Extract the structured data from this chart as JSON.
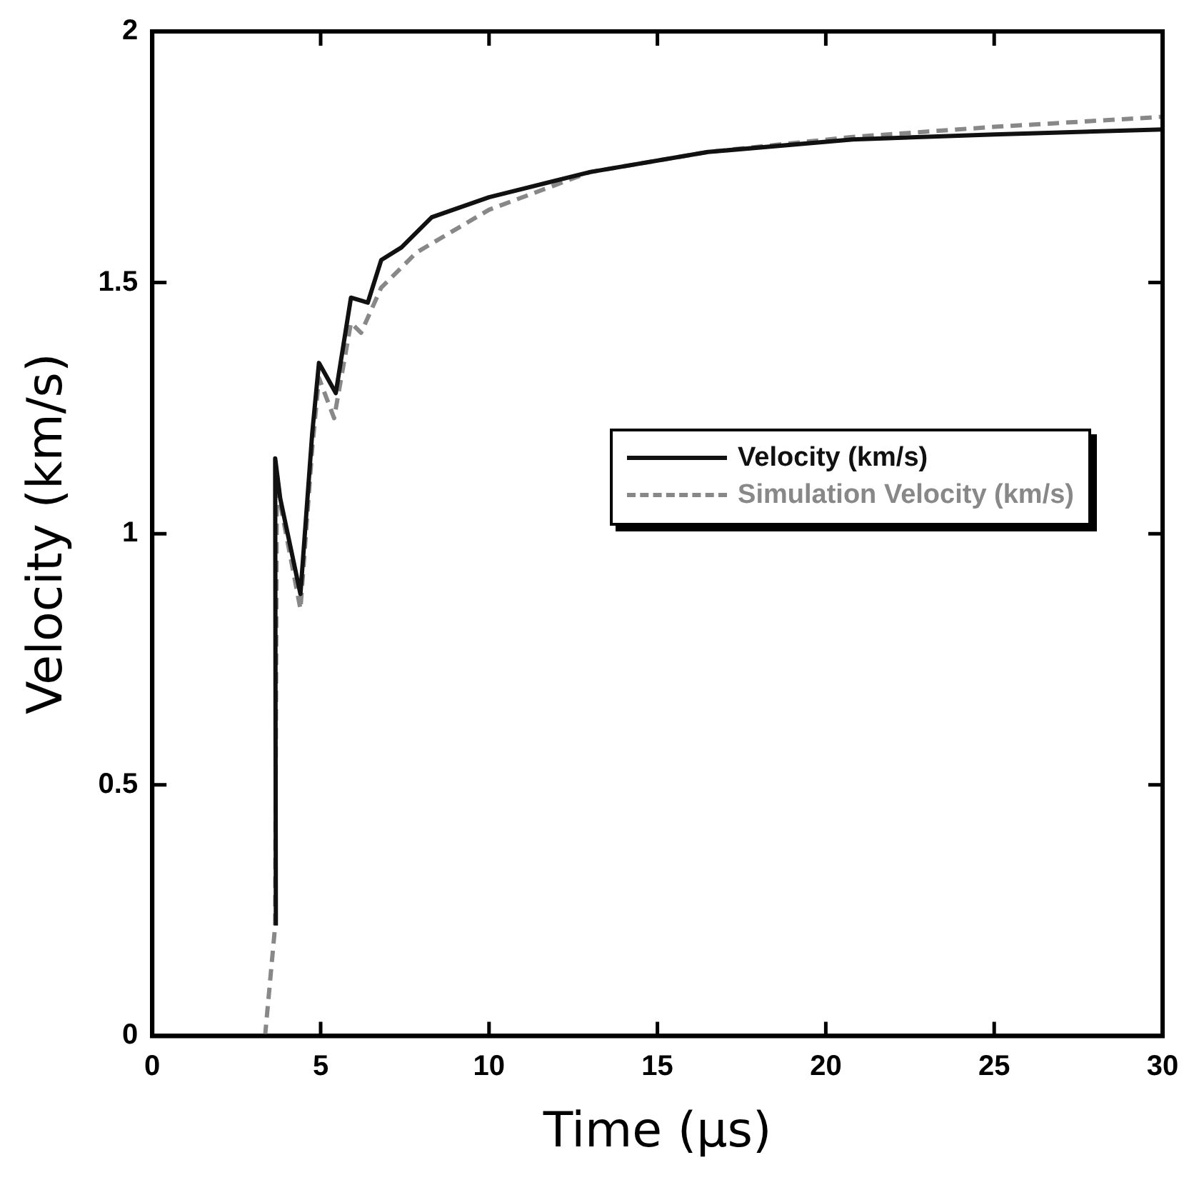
{
  "chart_data": {
    "type": "line",
    "xlabel": "Time (µs)",
    "ylabel": "Velocity (km/s)",
    "xlim": [
      0,
      30
    ],
    "xticks": [
      0,
      5,
      10,
      15,
      20,
      25,
      30
    ],
    "ylim": [
      0,
      2
    ],
    "yticks": [
      0,
      {
        "value": 0.5,
        "label": "0.5"
      },
      1,
      {
        "value": 1.5,
        "label": "1.5"
      },
      2
    ],
    "grid": false,
    "legend": "right",
    "marker": "none",
    "series": [
      {
        "name": "Velocity (km/s)",
        "color": "#111111",
        "line_style": "solid",
        "x": [
          3.67,
          3.65,
          3.8,
          4.4,
          4.75,
          4.95,
          5.45,
          5.9,
          6.4,
          6.8,
          7.4,
          8.3,
          10,
          13,
          16.5,
          20.8,
          25,
          30
        ],
        "values": [
          0.22,
          1.15,
          1.07,
          0.88,
          1.2,
          1.34,
          1.28,
          1.47,
          1.46,
          1.545,
          1.57,
          1.63,
          1.67,
          1.72,
          1.76,
          1.785,
          1.795,
          1.805
        ]
      },
      {
        "name": "Simulation Velocity (km/s)",
        "color": "#888888",
        "line_style": "dashed",
        "x": [
          3.35,
          3.65,
          3.7,
          3.8,
          4.4,
          4.75,
          4.95,
          5.4,
          5.9,
          6.2,
          6.8,
          7.85,
          10,
          13,
          16.5,
          20.8,
          25,
          30
        ],
        "values": [
          0,
          0.22,
          1.12,
          1.06,
          0.85,
          1.17,
          1.31,
          1.23,
          1.42,
          1.4,
          1.49,
          1.56,
          1.645,
          1.72,
          1.76,
          1.79,
          1.81,
          1.83
        ]
      }
    ]
  }
}
